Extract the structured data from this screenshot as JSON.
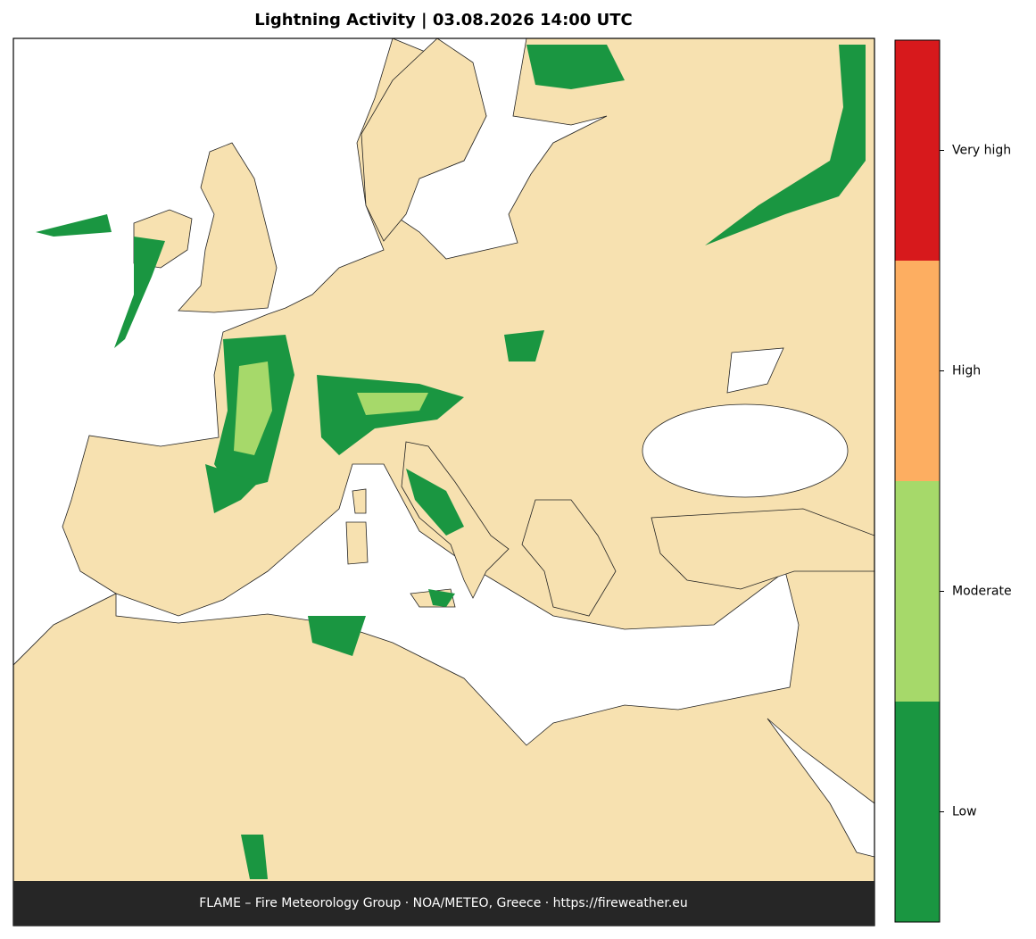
{
  "title": "Lightning Activity  |  03.08.2026 14:00 UTC",
  "footer": "FLAME – Fire Meteorology Group · NOA/METEO, Greece · https://fireweather.eu",
  "legend": {
    "levels": [
      {
        "label": "Low",
        "color": "#1a9641"
      },
      {
        "label": "Moderate",
        "color": "#a6d96a"
      },
      {
        "label": "High",
        "color": "#fdae61"
      },
      {
        "label": "Very high",
        "color": "#d7191c"
      }
    ]
  }
}
